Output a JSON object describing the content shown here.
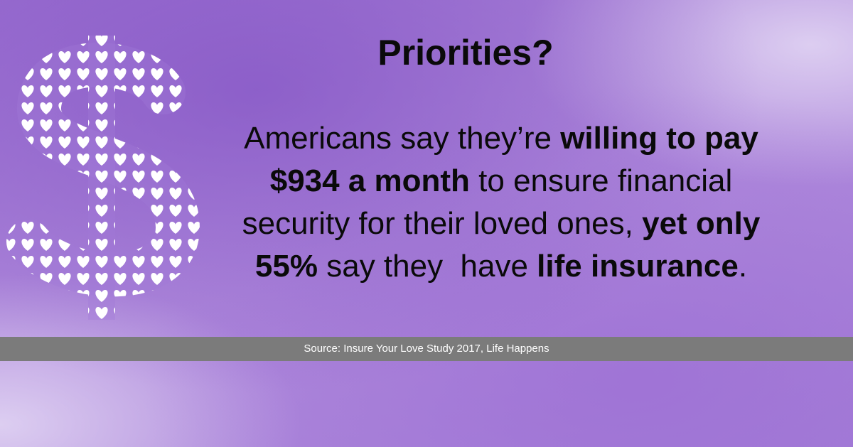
{
  "title": "Priorities?",
  "body": [
    [
      {
        "text": "Americans say they’re ",
        "bold": false
      },
      {
        "text": "willing to pay",
        "bold": true
      }
    ],
    [
      {
        "text": "$934 a month",
        "bold": true
      },
      {
        "text": " to ensure financial",
        "bold": false
      }
    ],
    [
      {
        "text": "security for their loved ones, ",
        "bold": false
      },
      {
        "text": "yet only",
        "bold": true
      }
    ],
    [
      {
        "text": "55%",
        "bold": true
      },
      {
        "text": " say they  have ",
        "bold": false
      },
      {
        "text": "life insurance",
        "bold": true
      },
      {
        "text": ".",
        "bold": false
      }
    ]
  ],
  "source": "Source: Insure Your Love Study 2017, Life Happens"
}
